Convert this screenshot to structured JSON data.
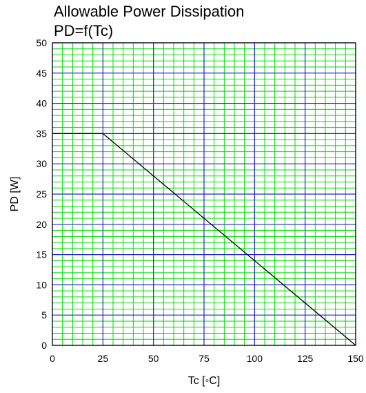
{
  "chart_data": {
    "type": "line",
    "title": "Allowable Power Dissipation",
    "subtitle": "PD=f(Tc)",
    "xlabel": "Tc [◦C]",
    "ylabel": "PD [W]",
    "xlim": [
      0,
      150
    ],
    "ylim": [
      0,
      50
    ],
    "x_ticks": [
      "0",
      "25",
      "50",
      "75",
      "100",
      "125",
      "150"
    ],
    "y_ticks": [
      "0",
      "5",
      "10",
      "15",
      "20",
      "25",
      "30",
      "35",
      "40",
      "45",
      "50"
    ],
    "grid": true,
    "legend": "none",
    "colors": {
      "major_grid": "#2222cc",
      "minor_grid": "#00dd00",
      "line": "#000000",
      "frame": "#000000"
    },
    "series": [
      {
        "x": [
          0,
          25,
          150
        ],
        "y": [
          35,
          35,
          0
        ]
      }
    ]
  }
}
